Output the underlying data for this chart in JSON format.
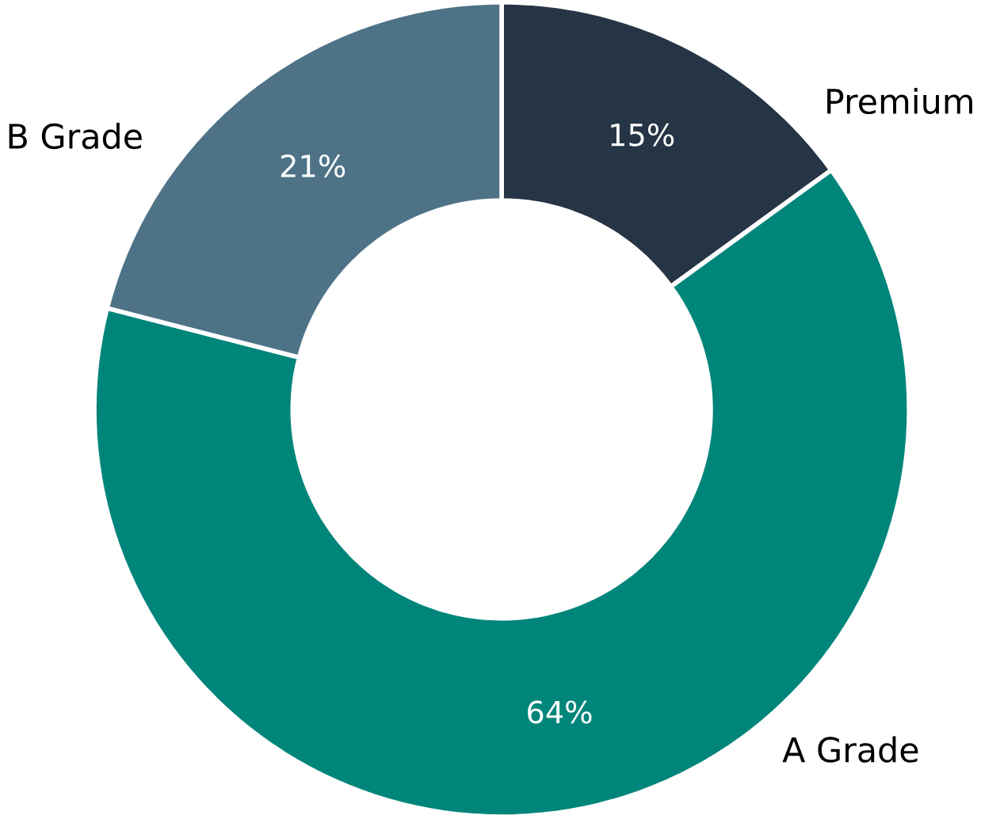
{
  "chart_data": {
    "type": "donut",
    "categories": [
      "Premium",
      "A Grade",
      "B Grade"
    ],
    "values": [
      15,
      64,
      21
    ],
    "value_labels": [
      "15%",
      "64%",
      "21%"
    ],
    "colors": [
      "#263545",
      "#00857a",
      "#4e7387"
    ]
  }
}
